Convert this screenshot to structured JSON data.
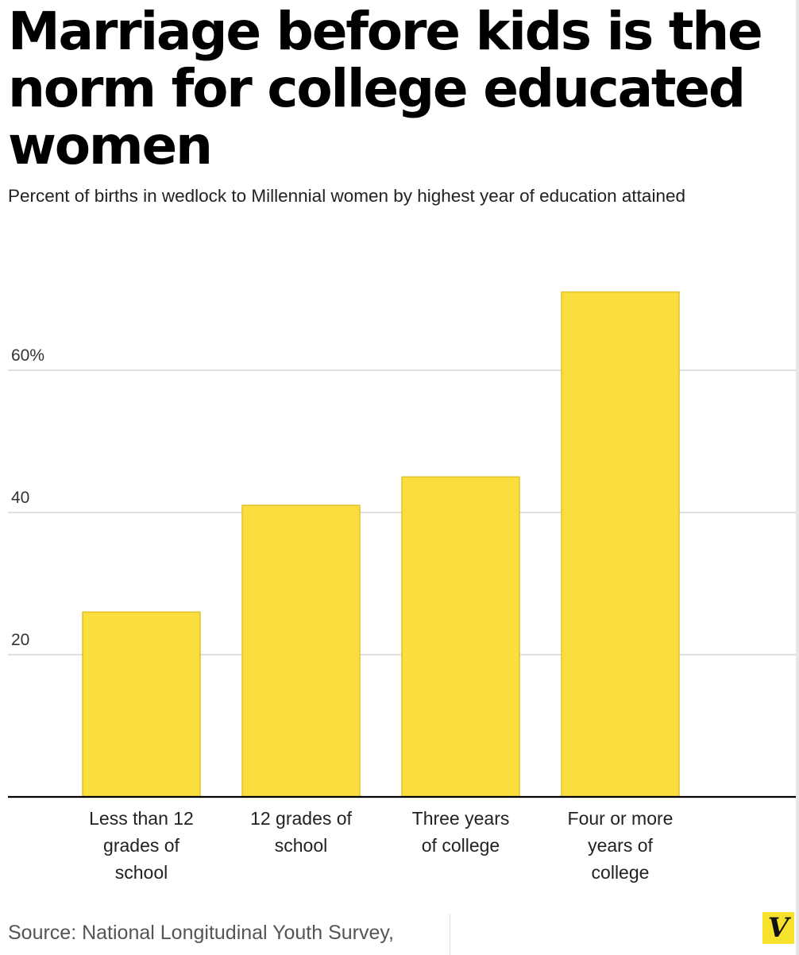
{
  "title": "Marriage before kids is the norm for college educated women",
  "subtitle": "Percent of births in wedlock to Millennial women by highest year of education attained",
  "source": "Source: National Longitudinal Youth Survey,",
  "logo": "V",
  "colors": {
    "bar": "#fcdd3e",
    "bar_stroke": "#e0c22a",
    "grid": "#cccccc",
    "axis": "#000000",
    "logo_bg": "#f7e22b"
  },
  "chart_data": {
    "type": "bar",
    "title": "Marriage before kids is the norm for college educated women",
    "subtitle": "Percent of births in wedlock to Millennial women by highest year of education attained",
    "categories": [
      [
        "Less than 12",
        "grades of",
        "school"
      ],
      [
        "12 grades of",
        "school"
      ],
      [
        "Three years",
        "of college"
      ],
      [
        "Four or more",
        "years of",
        "college"
      ]
    ],
    "values": [
      26,
      41,
      45,
      71
    ],
    "yticks": [
      {
        "value": 20,
        "label": "20"
      },
      {
        "value": 40,
        "label": "40"
      },
      {
        "value": 60,
        "label": "60%"
      }
    ],
    "ylim": [
      0,
      75
    ],
    "grid": true,
    "xlabel": "",
    "ylabel": ""
  }
}
